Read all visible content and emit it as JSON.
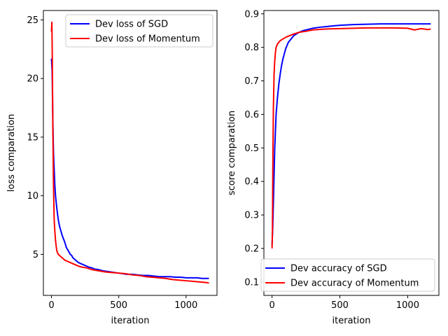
{
  "chart_data": [
    {
      "type": "line",
      "title": "",
      "xlabel": "iteration",
      "ylabel": "loss comparation",
      "xlim": [
        -60,
        1230
      ],
      "ylim": [
        1.5,
        25.8
      ],
      "xticks": [
        0,
        500,
        1000
      ],
      "yticks": [
        5,
        10,
        15,
        20,
        25
      ],
      "grid": false,
      "legend_position": "top-right",
      "series": [
        {
          "name": "Dev loss of SGD",
          "color": "#0000ff",
          "x": [
            0,
            5,
            10,
            15,
            20,
            25,
            30,
            40,
            50,
            60,
            70,
            80,
            90,
            100,
            110,
            120,
            130,
            140,
            150,
            160,
            170,
            180,
            190,
            200,
            220,
            240,
            260,
            280,
            300,
            320,
            350,
            380,
            410,
            440,
            470,
            500,
            530,
            560,
            600,
            640,
            680,
            720,
            760,
            800,
            840,
            880,
            920,
            960,
            1000,
            1040,
            1080,
            1120,
            1170
          ],
          "y": [
            21.7,
            20.6,
            16.5,
            13.6,
            12.3,
            10.9,
            10.0,
            8.9,
            8.0,
            7.4,
            7.0,
            6.6,
            6.3,
            6.0,
            5.6,
            5.4,
            5.2,
            5.0,
            4.9,
            4.7,
            4.6,
            4.5,
            4.4,
            4.3,
            4.2,
            4.1,
            4.0,
            3.9,
            3.85,
            3.75,
            3.7,
            3.6,
            3.55,
            3.5,
            3.45,
            3.4,
            3.35,
            3.3,
            3.3,
            3.25,
            3.2,
            3.2,
            3.15,
            3.1,
            3.1,
            3.1,
            3.05,
            3.05,
            3.0,
            3.0,
            3.0,
            2.95,
            2.95
          ]
        },
        {
          "name": "Dev loss of Momentum",
          "color": "#ff0000",
          "x": [
            0,
            3,
            6,
            10,
            15,
            20,
            25,
            30,
            35,
            40,
            50,
            60,
            70,
            80,
            100,
            120,
            140,
            160,
            180,
            200,
            230,
            260,
            300,
            350,
            400,
            450,
            500,
            550,
            600,
            650,
            700,
            750,
            800,
            850,
            900,
            950,
            1000,
            1050,
            1100,
            1150,
            1170
          ],
          "y": [
            24.0,
            24.8,
            22.0,
            16.0,
            11.0,
            8.0,
            7.0,
            6.2,
            5.7,
            5.3,
            5.0,
            4.9,
            4.8,
            4.7,
            4.5,
            4.4,
            4.3,
            4.2,
            4.1,
            4.0,
            3.9,
            3.85,
            3.7,
            3.6,
            3.5,
            3.45,
            3.4,
            3.35,
            3.25,
            3.2,
            3.1,
            3.05,
            3.0,
            2.95,
            2.85,
            2.8,
            2.75,
            2.7,
            2.65,
            2.6,
            2.55
          ]
        }
      ]
    },
    {
      "type": "line",
      "title": "",
      "xlabel": "iteration",
      "ylabel": "score comparation",
      "xlim": [
        -60,
        1230
      ],
      "ylim": [
        0.06,
        0.91
      ],
      "xticks": [
        0,
        500,
        1000
      ],
      "yticks": [
        0.1,
        0.2,
        0.3,
        0.4,
        0.5,
        0.6,
        0.7,
        0.8,
        0.9
      ],
      "grid": false,
      "legend_position": "bottom-right",
      "series": [
        {
          "name": "Dev accuracy of SGD",
          "color": "#0000ff",
          "x": [
            0,
            5,
            10,
            15,
            20,
            25,
            30,
            40,
            50,
            60,
            70,
            80,
            90,
            100,
            110,
            120,
            130,
            140,
            150,
            160,
            180,
            200,
            230,
            260,
            300,
            350,
            400,
            450,
            500,
            600,
            700,
            800,
            900,
            1000,
            1100,
            1170
          ],
          "y": [
            0.21,
            0.26,
            0.34,
            0.42,
            0.5,
            0.55,
            0.6,
            0.65,
            0.69,
            0.72,
            0.745,
            0.765,
            0.78,
            0.795,
            0.805,
            0.815,
            0.82,
            0.825,
            0.83,
            0.835,
            0.84,
            0.845,
            0.85,
            0.853,
            0.857,
            0.86,
            0.862,
            0.864,
            0.866,
            0.868,
            0.869,
            0.87,
            0.87,
            0.87,
            0.87,
            0.87
          ]
        },
        {
          "name": "Dev accuracy of Momentum",
          "color": "#ff0000",
          "x": [
            0,
            3,
            6,
            10,
            15,
            20,
            25,
            30,
            40,
            50,
            60,
            80,
            100,
            130,
            160,
            200,
            250,
            300,
            400,
            500,
            600,
            700,
            800,
            900,
            1000,
            1050,
            1100,
            1150,
            1170
          ],
          "y": [
            0.2,
            0.25,
            0.45,
            0.62,
            0.72,
            0.76,
            0.785,
            0.8,
            0.81,
            0.815,
            0.82,
            0.825,
            0.83,
            0.835,
            0.84,
            0.845,
            0.848,
            0.852,
            0.855,
            0.856,
            0.857,
            0.858,
            0.858,
            0.858,
            0.857,
            0.852,
            0.856,
            0.853,
            0.855
          ]
        }
      ]
    }
  ]
}
